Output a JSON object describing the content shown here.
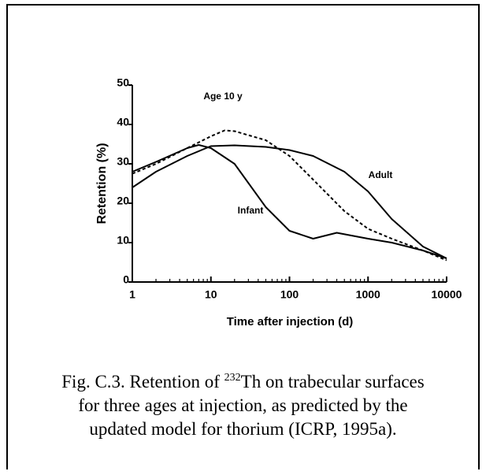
{
  "chart_data": {
    "type": "line",
    "xlabel": "Time after injection (d)",
    "ylabel": "Retention (%)",
    "xscale": "log",
    "xlim": [
      1,
      10000
    ],
    "xticks": [
      1,
      10,
      100,
      1000,
      10000
    ],
    "ylim": [
      0,
      50
    ],
    "yticks": [
      0,
      10,
      20,
      30,
      40,
      50
    ],
    "series": [
      {
        "name": "Adult",
        "color": "#000000",
        "style": "solid",
        "x": [
          1,
          2,
          5,
          10,
          20,
          50,
          100,
          200,
          500,
          1000,
          2000,
          5000,
          10000
        ],
        "values": [
          24,
          28,
          32,
          34.5,
          34.7,
          34.3,
          33.5,
          32,
          28,
          23,
          16,
          9,
          6
        ]
      },
      {
        "name": "Age 10 y",
        "color": "#000000",
        "style": "dashed",
        "x": [
          1,
          2,
          5,
          10,
          15,
          20,
          50,
          100,
          200,
          500,
          1000,
          2000,
          5000,
          10000
        ],
        "values": [
          27.5,
          30,
          34,
          37,
          38.5,
          38.3,
          36,
          32,
          26,
          18,
          13.5,
          11,
          8,
          5.5
        ]
      },
      {
        "name": "Infant",
        "color": "#000000",
        "style": "solid",
        "x": [
          1,
          2,
          5,
          7,
          10,
          20,
          50,
          100,
          200,
          400,
          1000,
          2000,
          5000,
          10000
        ],
        "values": [
          28,
          30.5,
          34,
          34.8,
          34,
          30,
          19,
          13,
          11,
          12.5,
          11,
          10,
          8,
          6
        ]
      }
    ],
    "caption": {
      "line1_before": "Fig. C.3.  Retention of",
      "superscript": "232",
      "line1_after": "Th on trabecular surfaces",
      "line2": "for three ages at injection, as predicted by the",
      "line3": "updated model for thorium (ICRP, 1995a)."
    }
  }
}
